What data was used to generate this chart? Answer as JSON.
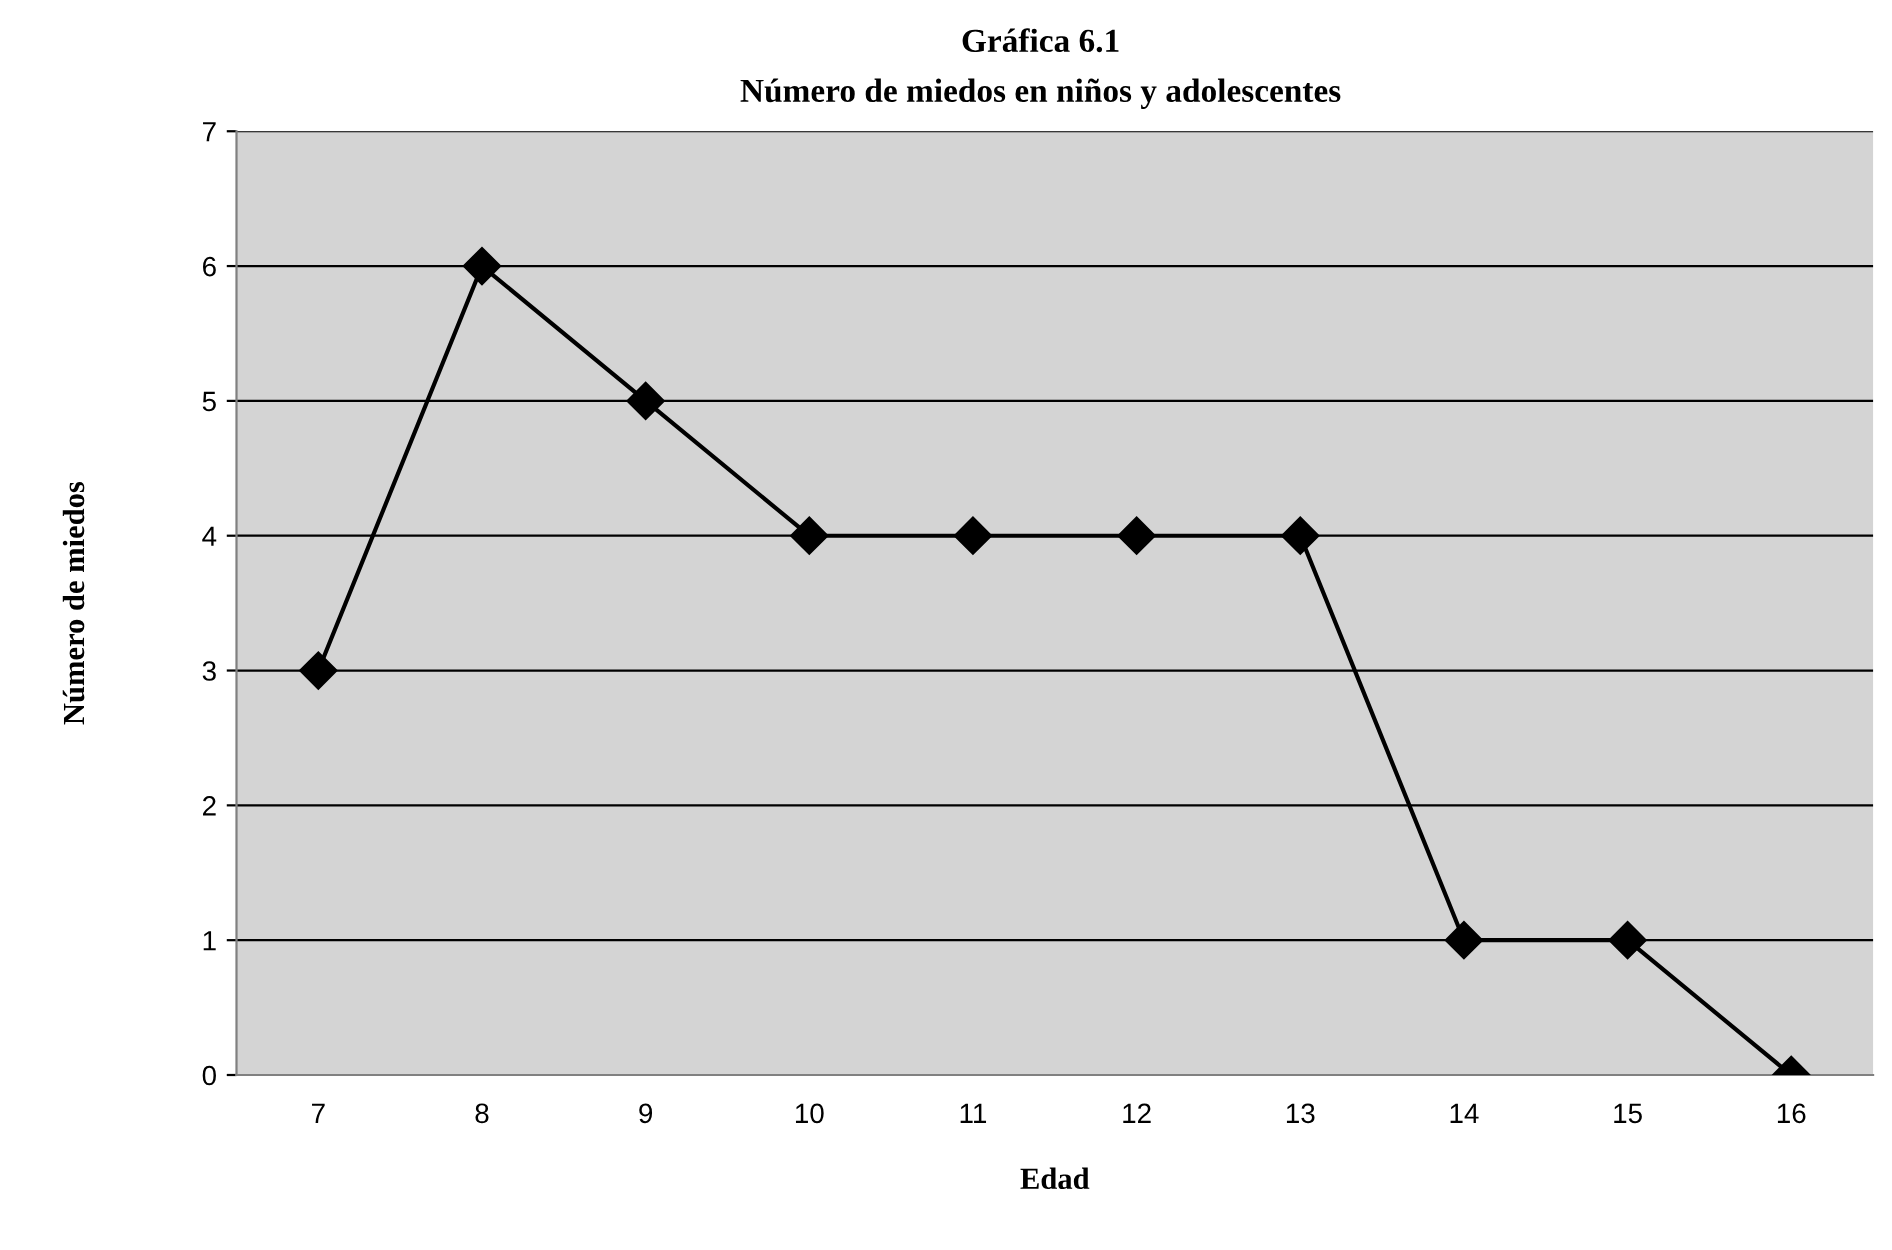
{
  "chart_data": {
    "type": "line",
    "title": "Gráfica 6.1",
    "subtitle": "Número de miedos en niños y adolescentes",
    "xlabel": "Edad",
    "ylabel": "Número de miedos",
    "categories": [
      "7",
      "8",
      "9",
      "10",
      "11",
      "12",
      "13",
      "14",
      "15",
      "16"
    ],
    "series": [
      {
        "color": "#000000",
        "values": [
          3,
          6,
          5,
          4,
          4,
          4,
          4,
          1,
          1,
          0
        ]
      }
    ],
    "ylim": [
      0,
      7
    ],
    "yticks": [
      0,
      1,
      2,
      3,
      4,
      5,
      6,
      7
    ],
    "grid": "y",
    "legend": false,
    "marker": "diamond",
    "line_style": "solid"
  }
}
